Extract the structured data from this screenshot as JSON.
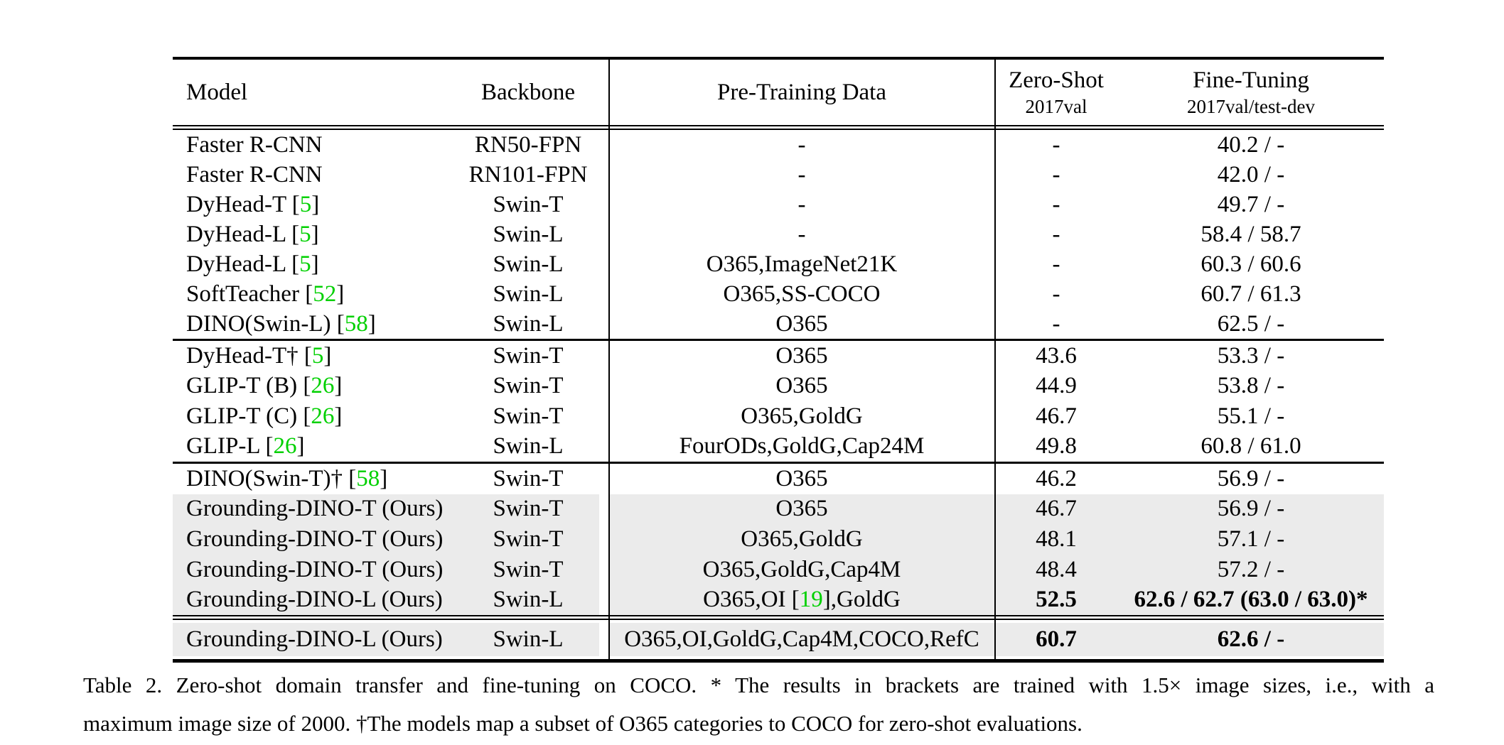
{
  "colors": {
    "highlight_gray": "#ebebeb",
    "citation_green": "#00d000",
    "rule_black": "#000000",
    "background": "#ffffff"
  },
  "table": {
    "header": {
      "model": "Model",
      "backbone": "Backbone",
      "pretrain": "Pre-Training Data",
      "zeroshot_title": "Zero-Shot",
      "zeroshot_sub": "2017val",
      "finetune_title": "Fine-Tuning",
      "finetune_sub": "2017val/test-dev"
    },
    "blocks": [
      {
        "rows": [
          {
            "model_pre": "Faster R-CNN",
            "model_cite": "",
            "model_post": "",
            "backbone": "RN50-FPN",
            "pre_pre": "-",
            "pre_cite": "",
            "pre_post": "",
            "zeroshot": "-",
            "finetune": "40.2 / -",
            "highlight": false,
            "bold": false
          },
          {
            "model_pre": "Faster R-CNN",
            "model_cite": "",
            "model_post": "",
            "backbone": "RN101-FPN",
            "pre_pre": "-",
            "pre_cite": "",
            "pre_post": "",
            "zeroshot": "-",
            "finetune": "42.0 / -",
            "highlight": false,
            "bold": false
          },
          {
            "model_pre": "DyHead-T [",
            "model_cite": "5",
            "model_post": "]",
            "backbone": "Swin-T",
            "pre_pre": "-",
            "pre_cite": "",
            "pre_post": "",
            "zeroshot": "-",
            "finetune": "49.7 / -",
            "highlight": false,
            "bold": false
          },
          {
            "model_pre": "DyHead-L [",
            "model_cite": "5",
            "model_post": "]",
            "backbone": "Swin-L",
            "pre_pre": "-",
            "pre_cite": "",
            "pre_post": "",
            "zeroshot": "-",
            "finetune": "58.4 / 58.7",
            "highlight": false,
            "bold": false
          },
          {
            "model_pre": "DyHead-L [",
            "model_cite": "5",
            "model_post": "]",
            "backbone": "Swin-L",
            "pre_pre": "O365,ImageNet21K",
            "pre_cite": "",
            "pre_post": "",
            "zeroshot": "-",
            "finetune": "60.3 / 60.6",
            "highlight": false,
            "bold": false
          },
          {
            "model_pre": "SoftTeacher [",
            "model_cite": "52",
            "model_post": "]",
            "backbone": "Swin-L",
            "pre_pre": "O365,SS-COCO",
            "pre_cite": "",
            "pre_post": "",
            "zeroshot": "-",
            "finetune": "60.7 / 61.3",
            "highlight": false,
            "bold": false
          },
          {
            "model_pre": "DINO(Swin-L) [",
            "model_cite": "58",
            "model_post": "]",
            "backbone": "Swin-L",
            "pre_pre": "O365",
            "pre_cite": "",
            "pre_post": "",
            "zeroshot": "-",
            "finetune": "62.5 / -",
            "highlight": false,
            "bold": false
          }
        ]
      },
      {
        "rows": [
          {
            "model_pre": "DyHead-T† [",
            "model_cite": "5",
            "model_post": "]",
            "backbone": "Swin-T",
            "pre_pre": "O365",
            "pre_cite": "",
            "pre_post": "",
            "zeroshot": "43.6",
            "finetune": "53.3 / -",
            "highlight": false,
            "bold": false
          },
          {
            "model_pre": "GLIP-T (B) [",
            "model_cite": "26",
            "model_post": "]",
            "backbone": "Swin-T",
            "pre_pre": "O365",
            "pre_cite": "",
            "pre_post": "",
            "zeroshot": "44.9",
            "finetune": "53.8 / -",
            "highlight": false,
            "bold": false
          },
          {
            "model_pre": "GLIP-T (C) [",
            "model_cite": "26",
            "model_post": "]",
            "backbone": "Swin-T",
            "pre_pre": "O365,GoldG",
            "pre_cite": "",
            "pre_post": "",
            "zeroshot": "46.7",
            "finetune": "55.1 / -",
            "highlight": false,
            "bold": false
          },
          {
            "model_pre": "GLIP-L [",
            "model_cite": "26",
            "model_post": "]",
            "backbone": "Swin-L",
            "pre_pre": "FourODs,GoldG,Cap24M",
            "pre_cite": "",
            "pre_post": "",
            "zeroshot": "49.8",
            "finetune": "60.8 / 61.0",
            "highlight": false,
            "bold": false
          }
        ]
      },
      {
        "rows": [
          {
            "model_pre": "DINO(Swin-T)† [",
            "model_cite": "58",
            "model_post": "]",
            "backbone": "Swin-T",
            "pre_pre": "O365",
            "pre_cite": "",
            "pre_post": "",
            "zeroshot": "46.2",
            "finetune": "56.9 / -",
            "highlight": false,
            "bold": false
          },
          {
            "model_pre": "Grounding-DINO-T (Ours)",
            "model_cite": "",
            "model_post": "",
            "backbone": "Swin-T",
            "pre_pre": "O365",
            "pre_cite": "",
            "pre_post": "",
            "zeroshot": "46.7",
            "finetune": "56.9 / -",
            "highlight": true,
            "bold": false
          },
          {
            "model_pre": "Grounding-DINO-T (Ours)",
            "model_cite": "",
            "model_post": "",
            "backbone": "Swin-T",
            "pre_pre": "O365,GoldG",
            "pre_cite": "",
            "pre_post": "",
            "zeroshot": "48.1",
            "finetune": "57.1 / -",
            "highlight": true,
            "bold": false
          },
          {
            "model_pre": "Grounding-DINO-T (Ours)",
            "model_cite": "",
            "model_post": "",
            "backbone": "Swin-T",
            "pre_pre": "O365,GoldG,Cap4M",
            "pre_cite": "",
            "pre_post": "",
            "zeroshot": "48.4",
            "finetune": "57.2 / -",
            "highlight": true,
            "bold": false
          },
          {
            "model_pre": "Grounding-DINO-L (Ours)",
            "model_cite": "",
            "model_post": "",
            "backbone": "Swin-L",
            "pre_pre": "O365,OI [",
            "pre_cite": "19",
            "pre_post": "],GoldG",
            "zeroshot": "52.5",
            "finetune": "62.6 / 62.7 (63.0 / 63.0)*",
            "highlight": true,
            "bold": true
          }
        ]
      },
      {
        "rows": [
          {
            "model_pre": "Grounding-DINO-L (Ours)",
            "model_cite": "",
            "model_post": "",
            "backbone": "Swin-L",
            "pre_pre": "O365,OI,GoldG,Cap4M,COCO,RefC",
            "pre_cite": "",
            "pre_post": "",
            "zeroshot": "60.7",
            "finetune": "62.6 / -",
            "highlight": true,
            "bold": true
          }
        ]
      }
    ]
  },
  "caption": {
    "line1": "Table 2.  Zero-shot domain transfer and fine-tuning on COCO. * The results in brackets are trained with 1.5× image sizes, i.e., with a",
    "line2": "maximum image size of 2000. †The models map a subset of O365 categories to COCO for zero-shot evaluations."
  }
}
